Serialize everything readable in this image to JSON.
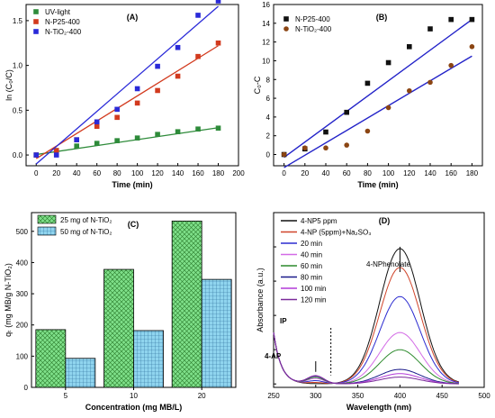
{
  "chart_data": [
    {
      "panel": "(A)",
      "type": "scatter",
      "xlabel": "Time (min)",
      "ylabel": "ln (C0/C)",
      "xlim": [
        -10,
        200
      ],
      "ylim": [
        -0.12,
        1.68
      ],
      "xticks": [
        0,
        20,
        40,
        60,
        80,
        100,
        120,
        140,
        160,
        180,
        200
      ],
      "yticks": [
        0.0,
        0.5,
        1.0,
        1.5
      ],
      "legend": "top-left",
      "series": [
        {
          "name": "UV-light",
          "color": "#2e8b3a",
          "marker": "square",
          "x": [
            0,
            20,
            40,
            60,
            80,
            100,
            120,
            140,
            160,
            180
          ],
          "y": [
            0.0,
            0.05,
            0.1,
            0.13,
            0.16,
            0.19,
            0.23,
            0.26,
            0.29,
            0.3
          ],
          "fit": [
            0.005,
            0.305
          ]
        },
        {
          "name": "N-P25-400",
          "color": "#d23a1e",
          "marker": "square",
          "x": [
            0,
            20,
            40,
            60,
            80,
            100,
            120,
            140,
            160,
            180
          ],
          "y": [
            0.0,
            0.05,
            0.17,
            0.32,
            0.42,
            0.58,
            0.72,
            0.88,
            1.1,
            1.25
          ],
          "fit": [
            -0.04,
            1.22
          ]
        },
        {
          "name": "N-TiO2-400",
          "color": "#2a2ad8",
          "marker": "square",
          "x": [
            0,
            20,
            40,
            60,
            80,
            100,
            120,
            140,
            160,
            180
          ],
          "y": [
            0.0,
            0.0,
            0.17,
            0.37,
            0.51,
            0.74,
            0.99,
            1.2,
            1.56,
            1.72
          ],
          "fit": [
            -0.1,
            1.66
          ]
        }
      ],
      "legend_labels": [
        "UV-light",
        "N-P25-400",
        "N-TiO₂-400"
      ]
    },
    {
      "panel": "(B)",
      "type": "scatter",
      "xlabel": "Time (min)",
      "ylabel": "C0-C",
      "xlim": [
        -10,
        190
      ],
      "ylim": [
        -1.2,
        16
      ],
      "xticks": [
        0,
        20,
        40,
        60,
        80,
        100,
        120,
        140,
        160,
        180
      ],
      "yticks": [
        0,
        2,
        4,
        6,
        8,
        10,
        12,
        14,
        16
      ],
      "legend": "top-left",
      "series": [
        {
          "name": "N-P25-400",
          "color": "#111111",
          "marker": "square",
          "x": [
            0,
            20,
            40,
            60,
            80,
            100,
            120,
            140,
            160,
            180
          ],
          "y": [
            0.0,
            0.6,
            2.4,
            4.5,
            7.6,
            9.8,
            11.5,
            13.4,
            14.4,
            14.4
          ],
          "fit": [
            -0.3,
            14.4
          ]
        },
        {
          "name": "N-TiO2-400",
          "color": "#8b4513",
          "marker": "circle",
          "x": [
            0,
            20,
            40,
            60,
            80,
            100,
            120,
            140,
            160,
            180
          ],
          "y": [
            0.0,
            0.7,
            0.7,
            1.0,
            2.5,
            5.0,
            6.8,
            7.7,
            9.5,
            11.5
          ],
          "fit": [
            -1.4,
            10.5
          ]
        }
      ],
      "legend_labels": [
        "N-P25-400",
        "N-TiO₂-400"
      ]
    },
    {
      "panel": "(C)",
      "type": "bar",
      "xlabel": "Concentration (mg MB/L)",
      "ylabel": "qt (mg MB/g N-TiO2)",
      "categories": [
        "5",
        "10",
        "20"
      ],
      "ylim": [
        0,
        560
      ],
      "yticks": [
        0,
        100,
        200,
        300,
        400,
        500
      ],
      "legend": "top-left",
      "series": [
        {
          "name": "25 mg of N-TiO2",
          "color": "#7fe08a",
          "values": [
            185,
            378,
            533
          ]
        },
        {
          "name": "50 mg of N-TiO2",
          "color": "#8fd4ee",
          "values": [
            93,
            182,
            346
          ]
        }
      ],
      "legend_labels": [
        "25 mg of N-TiO₂",
        "50 mg of N-TiO₂"
      ]
    },
    {
      "panel": "(D)",
      "type": "line",
      "xlabel": "Wavelength (nm)",
      "ylabel": "Absorbance (a.u.)",
      "xlim": [
        250,
        500
      ],
      "ylim": [
        -0.02,
        1.0
      ],
      "xticks": [
        250,
        300,
        350,
        400,
        450,
        500
      ],
      "annotations": [
        "4-NPhenolate",
        "IP",
        "4-AP"
      ],
      "legend": "top-left",
      "series": [
        {
          "name": "4-NP5 ppm",
          "color": "#111111",
          "peak": 0.79
        },
        {
          "name": "4-NP (5ppm)+Na2SO3",
          "color": "#d0442a",
          "peak": 0.68
        },
        {
          "name": "20 min",
          "color": "#2b2bd0",
          "peak": 0.51
        },
        {
          "name": "40 min",
          "color": "#d36be6",
          "peak": 0.3
        },
        {
          "name": "60 min",
          "color": "#2c8a2c",
          "peak": 0.2
        },
        {
          "name": "80 min",
          "color": "#1a1a8a",
          "peak": 0.085
        },
        {
          "name": "100 min",
          "color": "#b23ad8",
          "peak": 0.06
        },
        {
          "name": "120 min",
          "color": "#7a2a9a",
          "peak": 0.04
        }
      ],
      "legend_labels": [
        "4-NP5 ppm",
        "4-NP (5ppm)+Na₂SO₃",
        "20 min",
        "40 min",
        "60 min",
        "80 min",
        "100 min",
        "120 min"
      ]
    }
  ],
  "labels": {
    "ylabel_A": "ln (C₀/C)",
    "ylabel_B": "C₀-C",
    "ylabel_C": "qₜ (mg MB/g N-TiO₂)",
    "annot_phenolate": "4-NPhenolate",
    "annot_ip": "IP",
    "annot_ap": "4-AP"
  }
}
